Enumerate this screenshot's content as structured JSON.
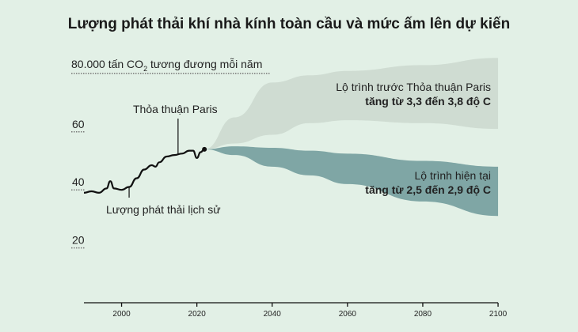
{
  "chart_data": {
    "type": "area",
    "title": "Lượng phát thải khí nhà kính toàn cầu và mức ấm lên dự kiến",
    "ylabel_main": "80.000 tấn CO",
    "ylabel_sub": "2",
    "ylabel_rest": " tương đương mỗi năm",
    "yticks": [
      {
        "value": 80,
        "label": "80.000"
      },
      {
        "value": 60,
        "label": "60"
      },
      {
        "value": 40,
        "label": "40"
      },
      {
        "value": 20,
        "label": "20"
      }
    ],
    "xticks": [
      "2000",
      "2020",
      "2040",
      "2060",
      "2080",
      "2100"
    ],
    "xlim": [
      1990,
      2100
    ],
    "ylim": [
      0,
      90
    ],
    "series": [
      {
        "name": "Lượng phát thải lịch sử",
        "type": "line",
        "color": "#111111",
        "x": [
          1990,
          1992,
          1994,
          1996,
          1997,
          1998,
          2000,
          2002,
          2004,
          2006,
          2008,
          2009,
          2010,
          2012,
          2014,
          2016,
          2018,
          2019,
          2020,
          2021,
          2022
        ],
        "y": [
          39,
          39.5,
          39,
          40.5,
          43,
          40.5,
          40,
          41,
          44,
          47,
          48.5,
          48,
          49.5,
          51.5,
          52,
          52.5,
          53.5,
          53.5,
          51,
          53,
          54
        ]
      },
      {
        "name": "Lộ trình trước Thỏa thuận Paris",
        "type": "band",
        "color": "#cfdcd2",
        "x": [
          2022,
          2030,
          2040,
          2050,
          2060,
          2080,
          2100
        ],
        "upper": [
          54,
          65,
          77,
          79.5,
          81,
          83,
          85.5
        ],
        "lower": [
          54,
          56,
          59,
          63,
          64,
          63,
          61
        ]
      },
      {
        "name": "Lộ trình hiện tại",
        "type": "band",
        "color": "#7fa6a5",
        "x": [
          2022,
          2030,
          2040,
          2050,
          2060,
          2080,
          2100
        ],
        "upper": [
          54,
          55,
          54.5,
          53.5,
          52.5,
          50,
          48
        ],
        "lower": [
          54,
          52,
          48,
          45,
          42,
          36,
          31
        ]
      }
    ],
    "annotations": {
      "paris": {
        "text": "Thỏa thuận Paris",
        "year": 2015
      },
      "history": {
        "text": "Lượng phát thải lịch sử",
        "year": 2002
      },
      "pre_paris_line1": "Lộ trình trước Thỏa thuận Paris",
      "pre_paris_line2": "tăng từ 3,3 đến 3,8 độ C",
      "current_line1": "Lộ trình hiện tại",
      "current_line2": "tăng từ 2,5 đến 2,9 độ C"
    }
  }
}
